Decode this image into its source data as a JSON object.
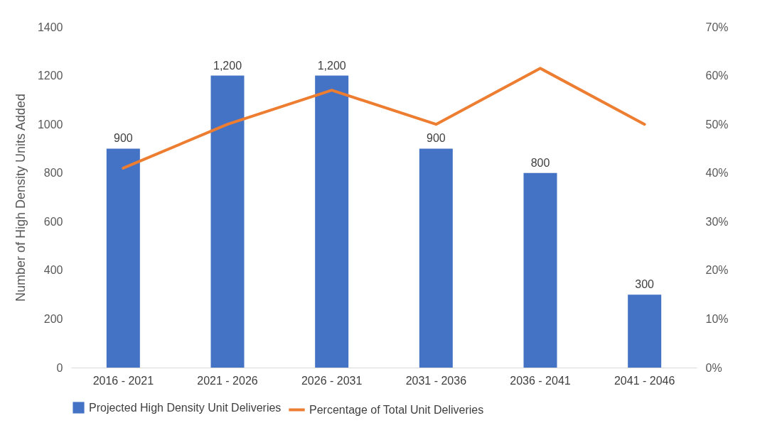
{
  "chart_data": {
    "type": "bar",
    "ylabel": "Number of High Density Units Added",
    "categories": [
      "2016 - 2021",
      "2021 - 2026",
      "2026 - 2031",
      "2031 - 2036",
      "2036 - 2041",
      "2041 - 2046"
    ],
    "series": [
      {
        "name": "Projected High Density Unit Deliveries",
        "color": "#4472c4",
        "values": [
          900,
          1200,
          1200,
          900,
          800,
          300
        ],
        "value_labels": [
          "900",
          "1,200",
          "1,200",
          "900",
          "800",
          "300"
        ]
      },
      {
        "name": "Percentage of Total Unit Deliveries",
        "type": "line",
        "axis": "y2",
        "color": "#ed7d31",
        "values": [
          41,
          50,
          57,
          50,
          61.5,
          50
        ]
      }
    ],
    "ylim": [
      0,
      1400
    ],
    "yticks": [
      0,
      200,
      400,
      600,
      800,
      1000,
      1200,
      1400
    ],
    "y2lim": [
      0,
      70
    ],
    "y2ticks": [
      {
        "value": 0,
        "label": "0%"
      },
      {
        "value": 10,
        "label": "10%"
      },
      {
        "value": 20,
        "label": "20%"
      },
      {
        "value": 30,
        "label": "30%"
      },
      {
        "value": 40,
        "label": "40%"
      },
      {
        "value": 50,
        "label": "50%"
      },
      {
        "value": 60,
        "label": "60%"
      },
      {
        "value": 70,
        "label": "70%"
      }
    ],
    "legend": "bottom"
  }
}
